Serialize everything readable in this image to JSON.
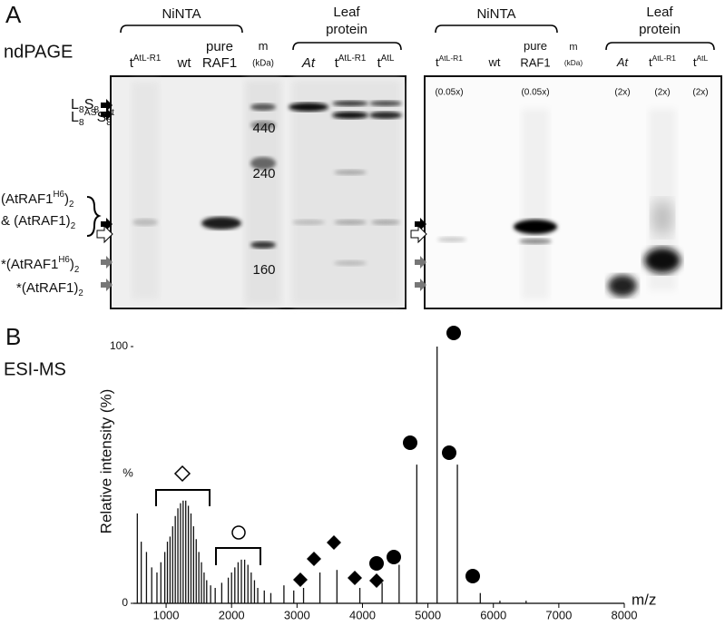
{
  "panel_a": {
    "label": "A",
    "technique": "ndPAGE",
    "gel1": {
      "groups": [
        "NiNTA",
        "Leaf protein"
      ],
      "lanes": [
        [
          [
            "t",
            ""
          ],
          [
            "AtL-R1",
            "sup"
          ]
        ],
        [
          [
            "wt",
            ""
          ]
        ],
        [
          [
            "pure",
            ""
          ]
        ],
        [
          [
            "m",
            ""
          ]
        ],
        [
          [
            "At",
            "it"
          ]
        ],
        [
          [
            "t",
            ""
          ],
          [
            "AtL-R1",
            "sup"
          ]
        ],
        [
          [
            "t",
            ""
          ],
          [
            "AtL",
            "sup"
          ]
        ]
      ],
      "lane_second_lines": {
        "2": "RAF1",
        "3": "(kDa)"
      },
      "markers": [
        "440",
        "240",
        "160"
      ]
    },
    "gel2": {
      "groups": [
        "NiNTA",
        "Leaf protein"
      ],
      "lanes": [
        [
          [
            "t",
            ""
          ],
          [
            "AtL-R1",
            "sup"
          ]
        ],
        [
          [
            "wt",
            ""
          ]
        ],
        [
          [
            "pure",
            ""
          ]
        ],
        [
          [
            "m",
            ""
          ]
        ],
        [
          [
            "At",
            "it"
          ]
        ],
        [
          [
            "t",
            ""
          ],
          [
            "AtL-R1",
            "sup"
          ]
        ],
        [
          [
            "t",
            ""
          ],
          [
            "AtL",
            "sup"
          ]
        ]
      ],
      "lane_second_lines": {
        "2": "RAF1",
        "3": "(kDa)"
      },
      "loads": [
        "(0.05x)",
        "(0.05x)",
        "(2x)",
        "(2x)",
        "(2x)"
      ]
    },
    "side_labels": [
      [
        [
          "L",
          ""
        ],
        [
          "8",
          "sub"
        ],
        [
          "S",
          ""
        ],
        [
          "8",
          "sub"
        ]
      ],
      [
        [
          "L",
          ""
        ],
        [
          "8",
          "sub"
        ],
        [
          "AS",
          "sup"
        ],
        [
          "S",
          ""
        ],
        [
          "8",
          "sub"
        ],
        [
          "t",
          "sup"
        ]
      ],
      [
        [
          "(AtRAF1",
          ""
        ],
        [
          "H6",
          "sup"
        ],
        [
          ")",
          ""
        ],
        [
          "2",
          "sub"
        ]
      ],
      [
        [
          "& (AtRAF1)",
          ""
        ],
        [
          "2",
          "sub"
        ]
      ],
      [
        [
          "*(AtRAF1",
          ""
        ],
        [
          "H6",
          "sup"
        ],
        [
          ")",
          ""
        ],
        [
          "2",
          "sub"
        ]
      ],
      [
        [
          "*(AtRAF1)",
          ""
        ],
        [
          "2",
          "sub"
        ]
      ]
    ]
  },
  "panel_b": {
    "label": "B",
    "technique": "ESI-MS",
    "chart_data": {
      "type": "spectrum",
      "x_label": "m/z",
      "y_label": "Relative intensity (%)",
      "y_unit_label": "%",
      "xlim": [
        500,
        8000
      ],
      "ylim": [
        0,
        100
      ],
      "xticks": [
        1000,
        2000,
        3000,
        4000,
        5000,
        6000,
        7000,
        8000
      ],
      "yticks": [
        0,
        100
      ],
      "color": "#111111",
      "x": [
        560,
        620,
        700,
        780,
        860,
        920,
        980,
        1020,
        1060,
        1100,
        1140,
        1180,
        1220,
        1260,
        1300,
        1340,
        1380,
        1420,
        1460,
        1500,
        1540,
        1580,
        1620,
        1680,
        1750,
        1850,
        1950,
        2000,
        2050,
        2100,
        2150,
        2200,
        2250,
        2300,
        2350,
        2400,
        2500,
        2600,
        2800,
        2950,
        3100,
        3350,
        3610,
        3960,
        4300,
        4560,
        4830,
        5140,
        5450,
        5800,
        6100,
        6500
      ],
      "values": [
        35,
        24,
        20,
        14,
        12,
        16,
        20,
        24,
        26,
        30,
        34,
        37,
        39,
        40,
        40,
        38,
        35,
        30,
        25,
        20,
        16,
        12,
        9,
        7,
        6,
        8,
        10,
        12,
        14,
        16,
        17,
        17,
        15,
        12,
        9,
        6,
        5,
        4,
        7,
        5,
        6,
        12,
        13,
        6,
        8,
        15,
        54,
        100,
        54,
        4,
        1,
        1
      ]
    }
  }
}
